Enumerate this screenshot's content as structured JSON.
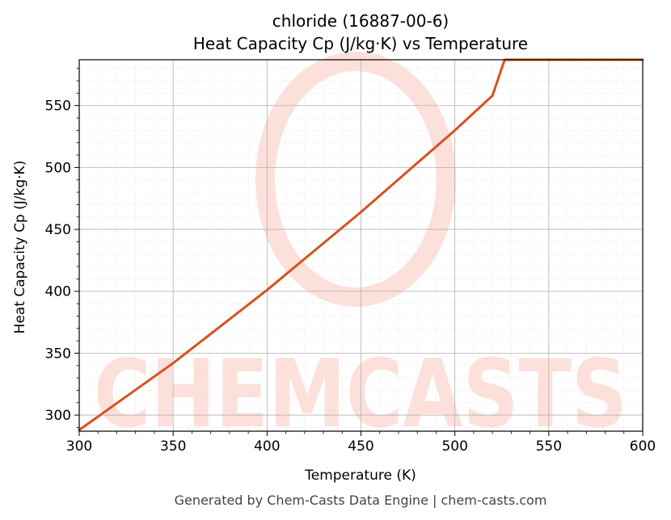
{
  "chart_data": {
    "type": "line",
    "title_line1": "chloride (16887-00-6)",
    "title_line2": "Heat Capacity Cp (J/kg·K) vs Temperature",
    "xlabel": "Temperature (K)",
    "ylabel": "Heat Capacity Cp (J/kg·K)",
    "xlim": [
      300,
      600
    ],
    "ylim": [
      287,
      587
    ],
    "xticks": [
      300,
      350,
      400,
      450,
      500,
      550,
      600
    ],
    "yticks": [
      300,
      350,
      400,
      450,
      500,
      550
    ],
    "grid": true,
    "series": [
      {
        "color": "#d4531e",
        "x": [
          300,
          350,
          400,
          450,
          500,
          520,
          526.5,
          600
        ],
        "y": [
          288,
          342,
          401,
          464,
          530,
          558,
          587,
          587
        ]
      }
    ]
  },
  "watermark": {
    "text": "CHEMCASTS",
    "color": "#fde0da"
  },
  "footer": "Generated by Chem-Casts Data Engine | chem-casts.com"
}
